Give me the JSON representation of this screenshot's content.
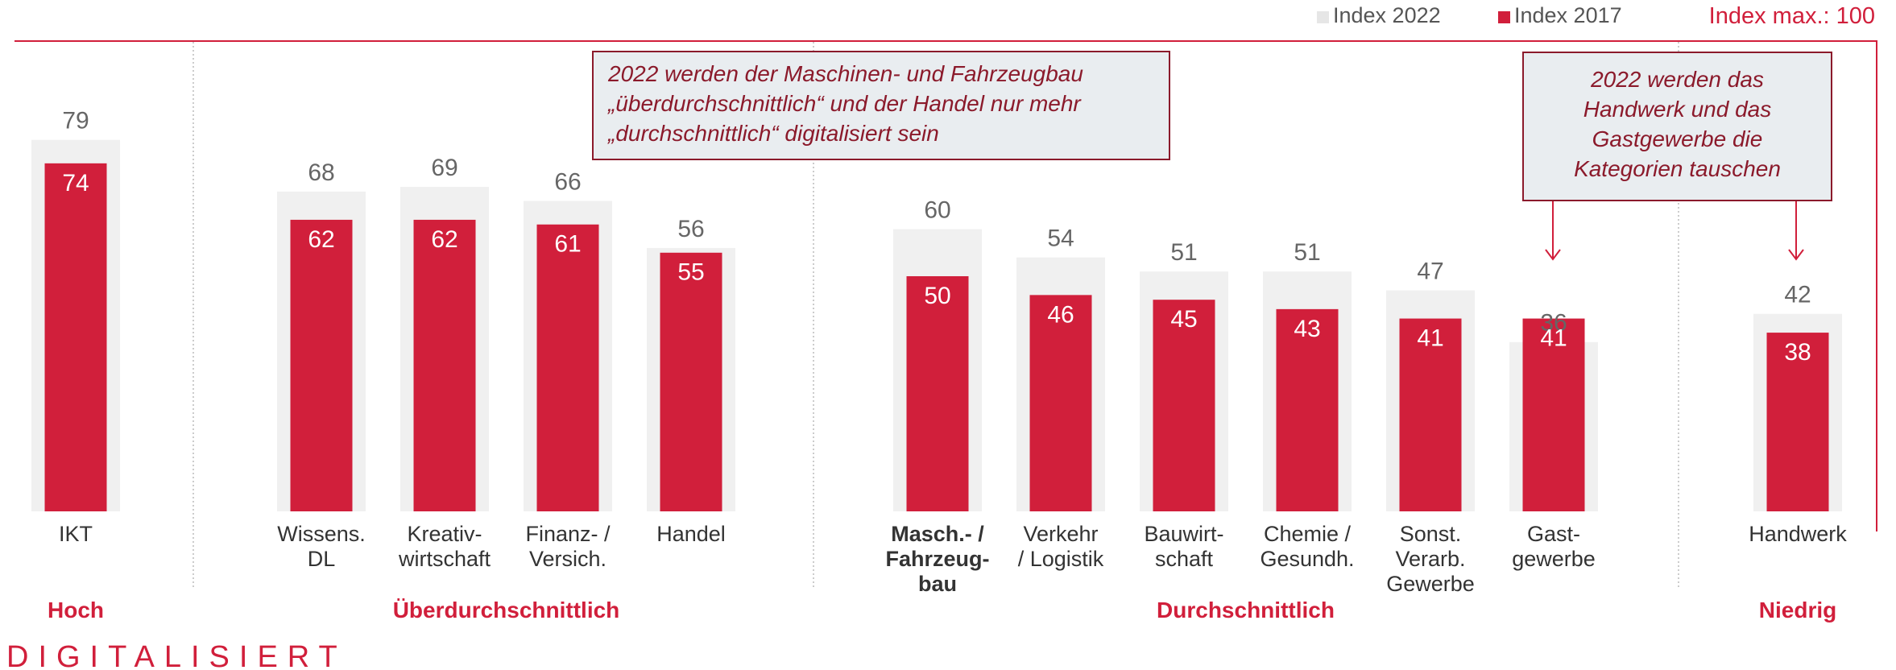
{
  "chart_data": {
    "type": "overlap_bar",
    "categories": [
      "IKT",
      "Wissens.\nDL",
      "Kreativ-\nwirtschaft",
      "Finanz- /\nVersich.",
      "Handel",
      "Masch.- /\nFahrzeug-\nbau",
      "Verkehr\n/ Logistik",
      "Bauwirt-\nschaft",
      "Chemie /\nGesundh.",
      "Sonst.\nVerarb.\nGewerbe",
      "Gast-\ngewerbe",
      "Handwerk"
    ],
    "series": [
      {
        "name": "Index 2022",
        "color": "#f0f0f0",
        "values": [
          79,
          68,
          69,
          66,
          56,
          60,
          54,
          51,
          51,
          47,
          36,
          42
        ]
      },
      {
        "name": "Index 2017",
        "color": "#d11f3b",
        "values": [
          74,
          62,
          62,
          61,
          55,
          50,
          46,
          45,
          43,
          41,
          41,
          38
        ]
      }
    ],
    "groups": [
      {
        "name": "Hoch",
        "start": 0,
        "end": 0
      },
      {
        "name": "Überdurchschnittlich",
        "start": 1,
        "end": 4
      },
      {
        "name": "Durchschnittlich",
        "start": 5,
        "end": 10
      },
      {
        "name": "Niedrig",
        "start": 11,
        "end": 11
      }
    ],
    "max_label": "Index max.: 100",
    "ylim": [
      0,
      100
    ],
    "annotations": [
      "2022 werden der Maschinen- und Fahrzeugbau\n„überdurchschnittlich“ und der Handel nur mehr\n„durchschnittlich“ digitalisiert sein",
      "2022 werden das\nHandwerk und das\nGastgewerbe die\nKategorien tauschen"
    ],
    "footer": "DIGITALISIERT"
  }
}
